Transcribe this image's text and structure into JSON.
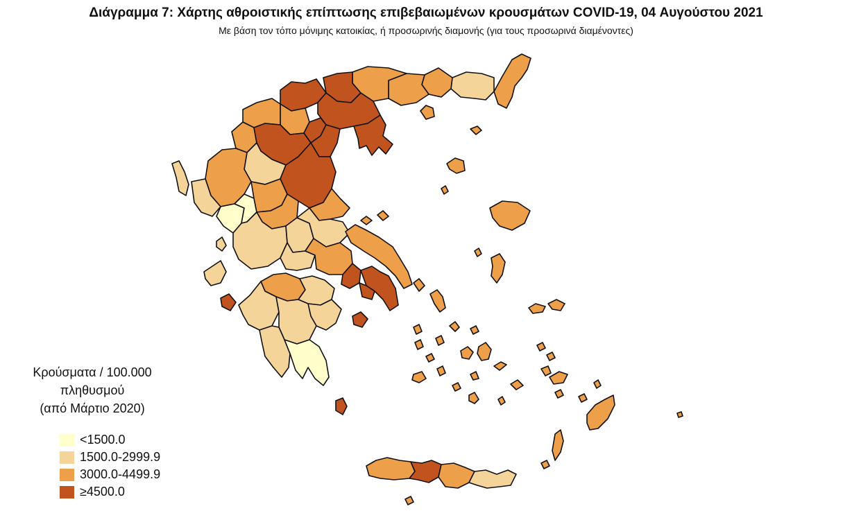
{
  "header": {
    "title": "Διάγραμμα 7: Χάρτης αθροιστικής επίπτωσης επιβεβαιωμένων κρουσμάτων COVID-19, 04 Αυγούστου 2021",
    "subtitle": "Με βάση τον τόπο μόνιμης κατοικίας, ή προσωρινής διαμονής (για τους προσωρινά διαμένοντες)"
  },
  "legend": {
    "title_line1": "Κρούσματα / 100.000 πληθυσμού",
    "title_line2": "(από Μάρτιο 2020)",
    "classes": [
      {
        "label": "<1500.0",
        "color": "#ffffcc"
      },
      {
        "label": "1500.0-2999.9",
        "color": "#f5d49a"
      },
      {
        "label": "3000.0-4499.9",
        "color": "#ee9f4a"
      },
      {
        "label": "≥4500.0",
        "color": "#c1531f"
      }
    ]
  }
}
